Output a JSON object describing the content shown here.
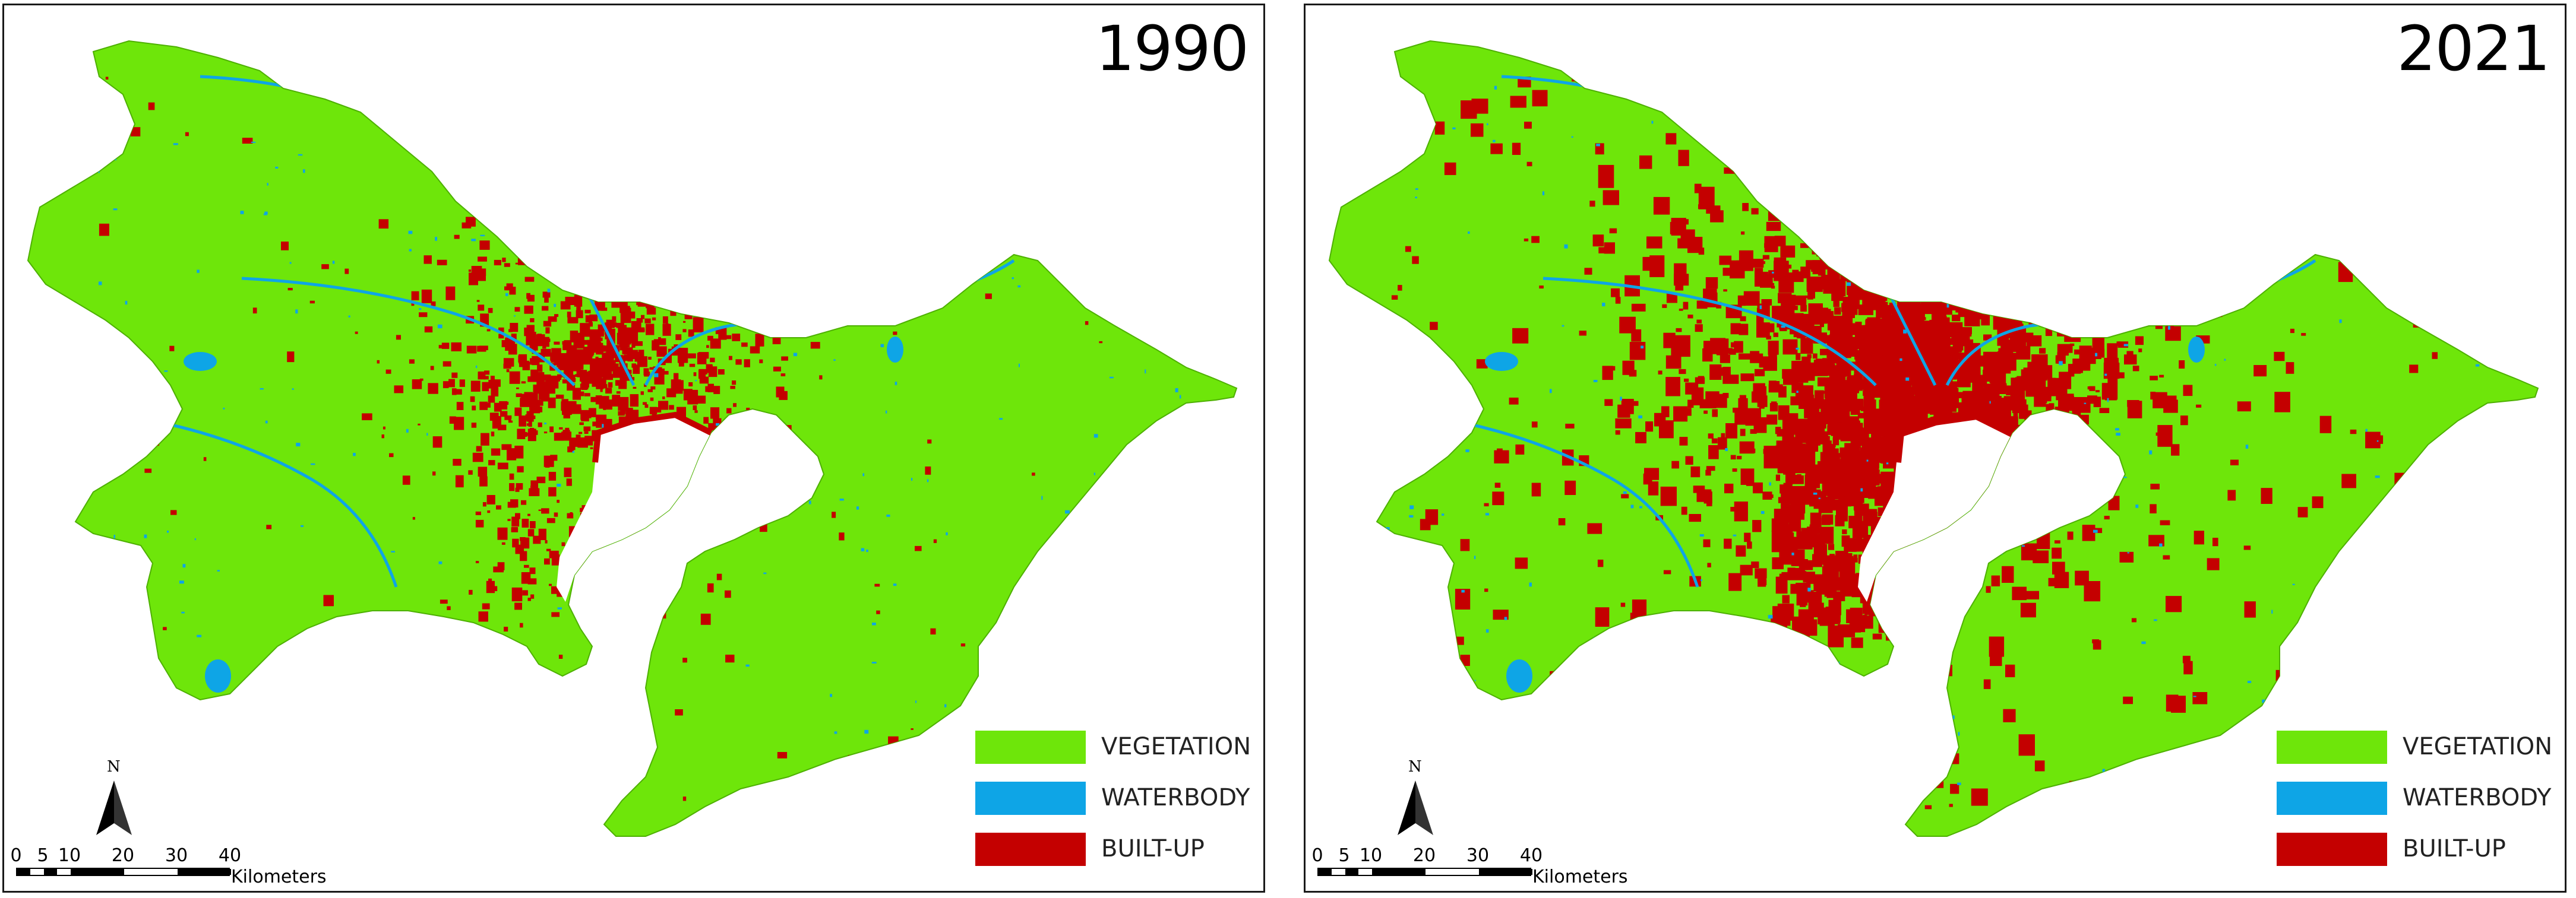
{
  "panels": [
    {
      "year": "1990",
      "built_up_level": "low"
    },
    {
      "year": "2021",
      "built_up_level": "high"
    }
  ],
  "legend": [
    {
      "label": "VEGETATION",
      "color": "#6ee60a"
    },
    {
      "label": "WATERBODY",
      "color": "#0ea5e6"
    },
    {
      "label": "BUILT-UP",
      "color": "#c40000"
    }
  ],
  "north_arrow": {
    "label": "N"
  },
  "scale_bar": {
    "ticks": [
      "0",
      "5",
      "10",
      "20",
      "30",
      "40"
    ],
    "units": "Kilometers"
  },
  "colors": {
    "vegetation": "#6ee60a",
    "water": "#0ea5e6",
    "built_up": "#c40000",
    "border": "#1a1a1a"
  }
}
